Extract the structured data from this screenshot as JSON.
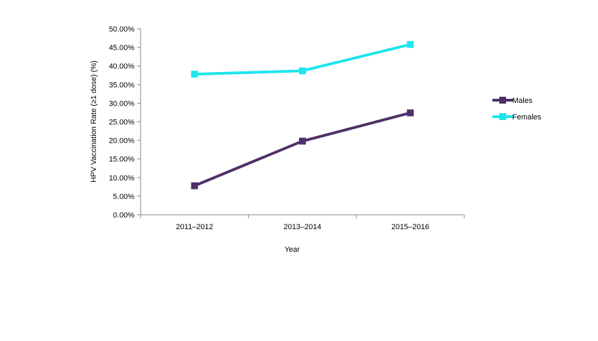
{
  "chart_data": {
    "type": "line",
    "title": "",
    "xlabel": "Year",
    "ylabel": "HPV Vaccination Rate (≥1 dose) (%)",
    "categories": [
      "2011–2012",
      "2013–2014",
      "2015–2016"
    ],
    "ylim": [
      0,
      50
    ],
    "yticks": [
      0,
      5,
      10,
      15,
      20,
      25,
      30,
      35,
      40,
      45,
      50
    ],
    "ytick_labels": [
      "0.00%",
      "5.00%",
      "10.00%",
      "15.00%",
      "20.00%",
      "25.00%",
      "30.00%",
      "35.00%",
      "40.00%",
      "45.00%",
      "50.00%"
    ],
    "grid": false,
    "legend": "right",
    "series": [
      {
        "name": "Males",
        "values": [
          7.8,
          19.8,
          27.4
        ],
        "color": "#4f3069"
      },
      {
        "name": "Females",
        "values": [
          37.8,
          38.7,
          45.8
        ],
        "color": "#1ee5ee"
      }
    ]
  }
}
